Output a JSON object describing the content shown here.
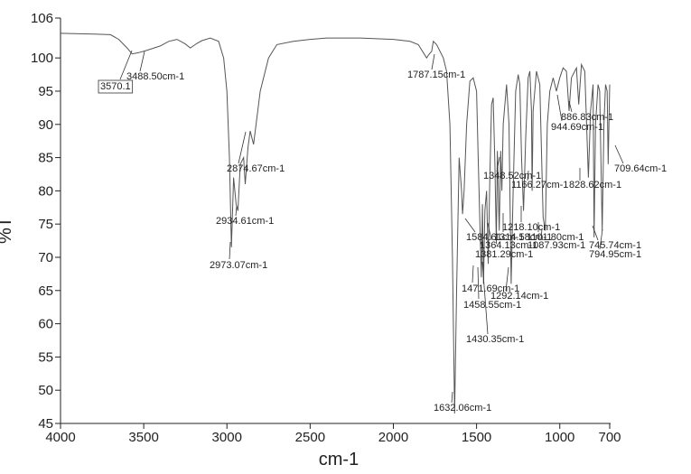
{
  "chart_data": {
    "type": "line",
    "xlabel": "cm-1",
    "ylabel": "%T",
    "xlim": [
      4000,
      700
    ],
    "ylim": [
      45,
      106
    ],
    "xticks": [
      4000,
      3500,
      3000,
      2500,
      2000,
      1500,
      1000,
      700
    ],
    "yticks": [
      45,
      50,
      55,
      60,
      65,
      70,
      75,
      80,
      85,
      90,
      95,
      100,
      106
    ],
    "color": "#555555",
    "x": [
      4000,
      3800,
      3700,
      3650,
      3600,
      3570,
      3530,
      3488,
      3450,
      3400,
      3350,
      3300,
      3250,
      3220,
      3180,
      3150,
      3100,
      3050,
      3020,
      3000,
      2985,
      2973,
      2960,
      2945,
      2934,
      2920,
      2900,
      2890,
      2874,
      2860,
      2840,
      2800,
      2750,
      2700,
      2600,
      2500,
      2400,
      2200,
      2000,
      1900,
      1850,
      1800,
      1787,
      1770,
      1760,
      1740,
      1700,
      1680,
      1660,
      1645,
      1632,
      1620,
      1605,
      1590,
      1584,
      1575,
      1560,
      1540,
      1520,
      1500,
      1490,
      1480,
      1471,
      1465,
      1458,
      1450,
      1440,
      1430,
      1420,
      1410,
      1400,
      1390,
      1381,
      1375,
      1364,
      1355,
      1348,
      1340,
      1320,
      1305,
      1292,
      1280,
      1265,
      1250,
      1240,
      1230,
      1218,
      1205,
      1190,
      1180,
      1170,
      1166,
      1160,
      1140,
      1120,
      1100,
      1087,
      1075,
      1060,
      1040,
      1020,
      1000,
      980,
      960,
      944,
      930,
      900,
      886,
      870,
      850,
      828,
      815,
      800,
      794,
      785,
      770,
      760,
      745,
      735,
      725,
      715,
      709,
      700
    ],
    "values": [
      103.7,
      103.6,
      103.5,
      102.8,
      101.5,
      100.6,
      100.8,
      101.1,
      101.4,
      101.8,
      102.5,
      102.8,
      102.1,
      101.5,
      102.2,
      102.6,
      103,
      102.5,
      100,
      95,
      85,
      71.5,
      82,
      78,
      77,
      84,
      85,
      81,
      86.5,
      89,
      87,
      95,
      100,
      102,
      102.5,
      102.8,
      103,
      103,
      102.8,
      102.5,
      102,
      100,
      100.5,
      101,
      102.5,
      102,
      100,
      98,
      90,
      70,
      46.5,
      65,
      85,
      80,
      76.5,
      80,
      90,
      96.5,
      97,
      95,
      85,
      75,
      67,
      78,
      66,
      77,
      80,
      69,
      82,
      93,
      94,
      84,
      72,
      86,
      74,
      86,
      80,
      90,
      96,
      90,
      66,
      80,
      95,
      97.5,
      96,
      85,
      77,
      88,
      97,
      98,
      92,
      80,
      92,
      98,
      96,
      76,
      74,
      90,
      95,
      97,
      95,
      97,
      98.5,
      98,
      92,
      97,
      98.5,
      93,
      99,
      98,
      82,
      92,
      96,
      73,
      90,
      96,
      95,
      74,
      90,
      96,
      95,
      84,
      96
    ],
    "annotations": [
      "3570.1",
      "3488.50cm-1",
      "1787.15cm-1",
      "2874.67cm-1",
      "2934.61cm-1",
      "2973.07cm-1",
      "886.83cm-1",
      "944.69cm-1",
      "709.64cm-1",
      "1348.52cm-1",
      "1166.27cm-1",
      "828.62cm-1",
      "1218.10cm-1",
      "1584.61cm-1",
      "1314.58cm-1",
      "1101.80cm-1",
      "1364.13cm-1",
      "1087.93cm-1",
      "745.74cm-1",
      "1381.29cm-1",
      "794.95cm-1",
      "1471.69cm-1",
      "1292.14cm-1",
      "1458.55cm-1",
      "1430.35cm-1",
      "1632.06cm-1"
    ]
  }
}
